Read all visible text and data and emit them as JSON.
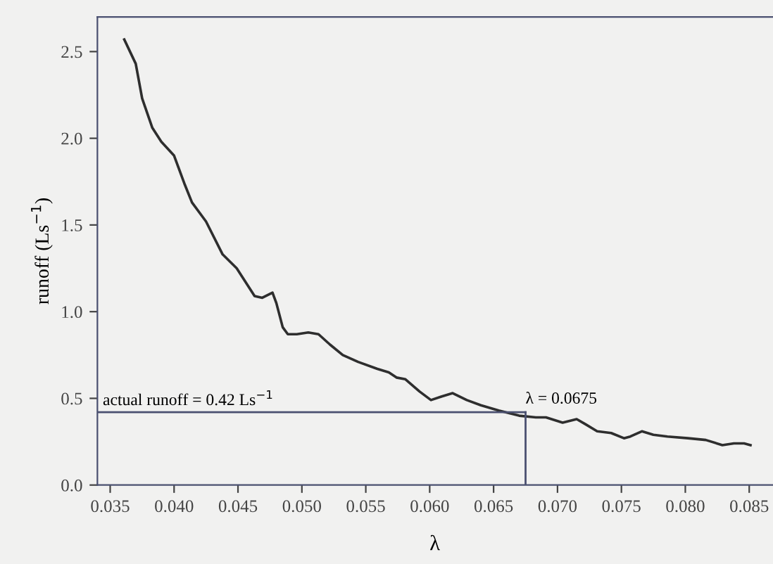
{
  "chart_data": {
    "type": "line",
    "xlabel": "λ",
    "ylabel": "runoff (Ls$^{−1}$)",
    "series": [
      {
        "color": "#2e2e2e",
        "x": [
          0.0361,
          0.037,
          0.0375,
          0.0383,
          0.039,
          0.04,
          0.0408,
          0.0414,
          0.0425,
          0.0438,
          0.0449,
          0.0456,
          0.0463,
          0.0469,
          0.0477,
          0.048,
          0.0485,
          0.0489,
          0.0496,
          0.0505,
          0.0513,
          0.0522,
          0.0532,
          0.0544,
          0.0559,
          0.0568,
          0.0574,
          0.0581,
          0.0592,
          0.0601,
          0.0609,
          0.0618,
          0.0629,
          0.064,
          0.0654,
          0.067,
          0.0683,
          0.0691,
          0.0704,
          0.0715,
          0.0722,
          0.0731,
          0.0742,
          0.0752,
          0.0757,
          0.0766,
          0.0775,
          0.0786,
          0.0802,
          0.0816,
          0.0829,
          0.0838,
          0.0846,
          0.0851
        ],
        "values": [
          2.57,
          2.43,
          2.23,
          2.06,
          1.98,
          1.9,
          1.74,
          1.63,
          1.52,
          1.33,
          1.25,
          1.17,
          1.09,
          1.08,
          1.11,
          1.05,
          0.91,
          0.87,
          0.87,
          0.88,
          0.87,
          0.81,
          0.75,
          0.71,
          0.67,
          0.65,
          0.62,
          0.61,
          0.54,
          0.49,
          0.51,
          0.53,
          0.49,
          0.46,
          0.43,
          0.4,
          0.39,
          0.39,
          0.36,
          0.38,
          0.35,
          0.31,
          0.3,
          0.27,
          0.28,
          0.31,
          0.29,
          0.28,
          0.27,
          0.26,
          0.23,
          0.24,
          0.24,
          0.23
        ]
      }
    ],
    "ref_lines": [
      {
        "axis": "y",
        "value": 0.42,
        "label": "actual runoff = 0.42 Ls$^{−1}$",
        "color": "#4a5070"
      },
      {
        "axis": "x",
        "value": 0.0675,
        "label": "λ = 0.0675",
        "color": "#4a5070"
      }
    ],
    "xlim": [
      0.034,
      0.0868
    ],
    "ylim": [
      0,
      2.7
    ],
    "xticks": [
      0.035,
      {
        "value": 0.04,
        "label": "0.040"
      },
      0.045,
      {
        "value": 0.05,
        "label": "0.050"
      },
      0.055,
      {
        "value": 0.06,
        "label": "0.060"
      },
      0.065,
      {
        "value": 0.07,
        "label": "0.070"
      },
      0.075,
      {
        "value": 0.08,
        "label": "0.080"
      },
      0.085
    ],
    "yticks": [
      {
        "value": 0,
        "label": "0.0"
      },
      0.5,
      {
        "value": 1,
        "label": "1.0"
      },
      1.5,
      {
        "value": 2,
        "label": "2.0"
      },
      2.5
    ],
    "grid": false,
    "legend": false,
    "marker": "none",
    "line_style": "solid"
  }
}
